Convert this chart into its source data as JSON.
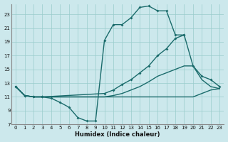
{
  "xlabel": "Humidex (Indice chaleur)",
  "bg_color": "#cce8ec",
  "grid_color": "#99cccc",
  "line_color": "#1a6b6b",
  "xlim": [
    -0.5,
    23.5
  ],
  "ylim": [
    7,
    24.5
  ],
  "xticks": [
    0,
    1,
    2,
    3,
    4,
    5,
    6,
    7,
    8,
    9,
    10,
    11,
    12,
    13,
    14,
    15,
    16,
    17,
    18,
    19,
    20,
    21,
    22,
    23
  ],
  "yticks": [
    7,
    9,
    11,
    13,
    15,
    17,
    19,
    21,
    23
  ],
  "line1_x": [
    0,
    1,
    2,
    3,
    4,
    5,
    6,
    7,
    8,
    9,
    10,
    11,
    12,
    13,
    14,
    15,
    16,
    17,
    18,
    19
  ],
  "line1_y": [
    12.5,
    11.2,
    11.0,
    11.0,
    10.8,
    10.2,
    9.5,
    8.0,
    7.5,
    7.5,
    19.2,
    21.5,
    21.5,
    22.5,
    24.0,
    24.2,
    23.5,
    23.5,
    20.0,
    20.0
  ],
  "line2_x": [
    0,
    1,
    2,
    3,
    10,
    11,
    12,
    13,
    14,
    15,
    16,
    17,
    18,
    19,
    20,
    21,
    22,
    23
  ],
  "line2_y": [
    12.5,
    11.2,
    11.0,
    11.0,
    11.5,
    12.0,
    12.8,
    13.5,
    14.5,
    15.5,
    17.0,
    18.0,
    19.5,
    20.0,
    15.5,
    14.0,
    13.5,
    12.5
  ],
  "line3_x": [
    0,
    1,
    2,
    3,
    10,
    11,
    12,
    13,
    14,
    15,
    16,
    17,
    18,
    19,
    20,
    21,
    22,
    23
  ],
  "line3_y": [
    12.5,
    11.2,
    11.0,
    11.0,
    11.0,
    11.2,
    11.5,
    12.0,
    12.5,
    13.2,
    14.0,
    14.5,
    15.0,
    15.5,
    15.5,
    13.5,
    12.5,
    12.2
  ],
  "line4_x": [
    0,
    1,
    2,
    3,
    10,
    11,
    12,
    13,
    14,
    15,
    16,
    17,
    18,
    19,
    20,
    21,
    22,
    23
  ],
  "line4_y": [
    12.5,
    11.2,
    11.0,
    11.0,
    11.0,
    11.0,
    11.0,
    11.0,
    11.0,
    11.0,
    11.0,
    11.0,
    11.0,
    11.0,
    11.0,
    11.5,
    12.0,
    12.2
  ]
}
